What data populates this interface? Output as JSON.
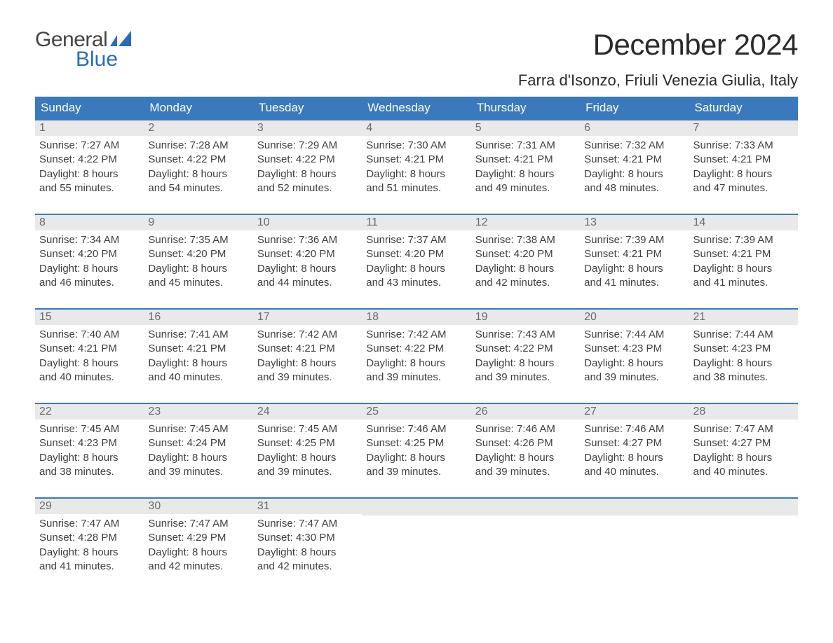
{
  "logo": {
    "top": "General",
    "bottom": "Blue"
  },
  "header": {
    "month_title": "December 2024",
    "location": "Farra d'Isonzo, Friuli Venezia Giulia, Italy"
  },
  "colors": {
    "header_bg": "#3a79bb",
    "header_text": "#ffffff",
    "daynum_bg": "#e9e9e9",
    "daynum_text": "#6b6b6b",
    "body_text": "#3f3f3f",
    "week_border": "#3a79bb",
    "logo_blue": "#2a6db4",
    "logo_gray": "#444444",
    "page_bg": "#ffffff"
  },
  "typography": {
    "month_title_fontsize": 42,
    "location_fontsize": 22,
    "dow_fontsize": 17,
    "daynum_fontsize": 16,
    "body_fontsize": 15
  },
  "days_of_week": [
    "Sunday",
    "Monday",
    "Tuesday",
    "Wednesday",
    "Thursday",
    "Friday",
    "Saturday"
  ],
  "labels": {
    "sunrise": "Sunrise:",
    "sunset": "Sunset:",
    "daylight": "Daylight:"
  },
  "weeks": [
    [
      {
        "n": "1",
        "sunrise": "7:27 AM",
        "sunset": "4:22 PM",
        "dl1": "8 hours",
        "dl2": "and 55 minutes."
      },
      {
        "n": "2",
        "sunrise": "7:28 AM",
        "sunset": "4:22 PM",
        "dl1": "8 hours",
        "dl2": "and 54 minutes."
      },
      {
        "n": "3",
        "sunrise": "7:29 AM",
        "sunset": "4:22 PM",
        "dl1": "8 hours",
        "dl2": "and 52 minutes."
      },
      {
        "n": "4",
        "sunrise": "7:30 AM",
        "sunset": "4:21 PM",
        "dl1": "8 hours",
        "dl2": "and 51 minutes."
      },
      {
        "n": "5",
        "sunrise": "7:31 AM",
        "sunset": "4:21 PM",
        "dl1": "8 hours",
        "dl2": "and 49 minutes."
      },
      {
        "n": "6",
        "sunrise": "7:32 AM",
        "sunset": "4:21 PM",
        "dl1": "8 hours",
        "dl2": "and 48 minutes."
      },
      {
        "n": "7",
        "sunrise": "7:33 AM",
        "sunset": "4:21 PM",
        "dl1": "8 hours",
        "dl2": "and 47 minutes."
      }
    ],
    [
      {
        "n": "8",
        "sunrise": "7:34 AM",
        "sunset": "4:20 PM",
        "dl1": "8 hours",
        "dl2": "and 46 minutes."
      },
      {
        "n": "9",
        "sunrise": "7:35 AM",
        "sunset": "4:20 PM",
        "dl1": "8 hours",
        "dl2": "and 45 minutes."
      },
      {
        "n": "10",
        "sunrise": "7:36 AM",
        "sunset": "4:20 PM",
        "dl1": "8 hours",
        "dl2": "and 44 minutes."
      },
      {
        "n": "11",
        "sunrise": "7:37 AM",
        "sunset": "4:20 PM",
        "dl1": "8 hours",
        "dl2": "and 43 minutes."
      },
      {
        "n": "12",
        "sunrise": "7:38 AM",
        "sunset": "4:20 PM",
        "dl1": "8 hours",
        "dl2": "and 42 minutes."
      },
      {
        "n": "13",
        "sunrise": "7:39 AM",
        "sunset": "4:21 PM",
        "dl1": "8 hours",
        "dl2": "and 41 minutes."
      },
      {
        "n": "14",
        "sunrise": "7:39 AM",
        "sunset": "4:21 PM",
        "dl1": "8 hours",
        "dl2": "and 41 minutes."
      }
    ],
    [
      {
        "n": "15",
        "sunrise": "7:40 AM",
        "sunset": "4:21 PM",
        "dl1": "8 hours",
        "dl2": "and 40 minutes."
      },
      {
        "n": "16",
        "sunrise": "7:41 AM",
        "sunset": "4:21 PM",
        "dl1": "8 hours",
        "dl2": "and 40 minutes."
      },
      {
        "n": "17",
        "sunrise": "7:42 AM",
        "sunset": "4:21 PM",
        "dl1": "8 hours",
        "dl2": "and 39 minutes."
      },
      {
        "n": "18",
        "sunrise": "7:42 AM",
        "sunset": "4:22 PM",
        "dl1": "8 hours",
        "dl2": "and 39 minutes."
      },
      {
        "n": "19",
        "sunrise": "7:43 AM",
        "sunset": "4:22 PM",
        "dl1": "8 hours",
        "dl2": "and 39 minutes."
      },
      {
        "n": "20",
        "sunrise": "7:44 AM",
        "sunset": "4:23 PM",
        "dl1": "8 hours",
        "dl2": "and 39 minutes."
      },
      {
        "n": "21",
        "sunrise": "7:44 AM",
        "sunset": "4:23 PM",
        "dl1": "8 hours",
        "dl2": "and 38 minutes."
      }
    ],
    [
      {
        "n": "22",
        "sunrise": "7:45 AM",
        "sunset": "4:23 PM",
        "dl1": "8 hours",
        "dl2": "and 38 minutes."
      },
      {
        "n": "23",
        "sunrise": "7:45 AM",
        "sunset": "4:24 PM",
        "dl1": "8 hours",
        "dl2": "and 39 minutes."
      },
      {
        "n": "24",
        "sunrise": "7:45 AM",
        "sunset": "4:25 PM",
        "dl1": "8 hours",
        "dl2": "and 39 minutes."
      },
      {
        "n": "25",
        "sunrise": "7:46 AM",
        "sunset": "4:25 PM",
        "dl1": "8 hours",
        "dl2": "and 39 minutes."
      },
      {
        "n": "26",
        "sunrise": "7:46 AM",
        "sunset": "4:26 PM",
        "dl1": "8 hours",
        "dl2": "and 39 minutes."
      },
      {
        "n": "27",
        "sunrise": "7:46 AM",
        "sunset": "4:27 PM",
        "dl1": "8 hours",
        "dl2": "and 40 minutes."
      },
      {
        "n": "28",
        "sunrise": "7:47 AM",
        "sunset": "4:27 PM",
        "dl1": "8 hours",
        "dl2": "and 40 minutes."
      }
    ],
    [
      {
        "n": "29",
        "sunrise": "7:47 AM",
        "sunset": "4:28 PM",
        "dl1": "8 hours",
        "dl2": "and 41 minutes."
      },
      {
        "n": "30",
        "sunrise": "7:47 AM",
        "sunset": "4:29 PM",
        "dl1": "8 hours",
        "dl2": "and 42 minutes."
      },
      {
        "n": "31",
        "sunrise": "7:47 AM",
        "sunset": "4:30 PM",
        "dl1": "8 hours",
        "dl2": "and 42 minutes."
      },
      null,
      null,
      null,
      null
    ]
  ]
}
